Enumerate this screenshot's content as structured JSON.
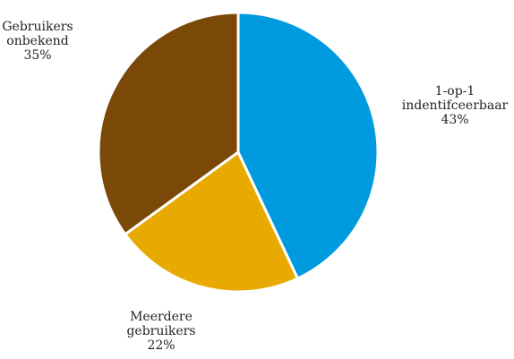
{
  "chart_data": {
    "type": "pie",
    "start_angle_deg": 0,
    "direction": "clockwise",
    "slices": [
      {
        "label_lines": [
          "1-op-1",
          "indentifceerbaar"
        ],
        "percent_label": "43%",
        "value": 43,
        "color": "#009ADE"
      },
      {
        "label_lines": [
          "Meerdere",
          "gebruikers"
        ],
        "percent_label": "22%",
        "value": 22,
        "color": "#E8AA00"
      },
      {
        "label_lines": [
          "Gebruikers",
          "onbekend"
        ],
        "percent_label": "35%",
        "value": 35,
        "color": "#7A4807"
      }
    ]
  }
}
